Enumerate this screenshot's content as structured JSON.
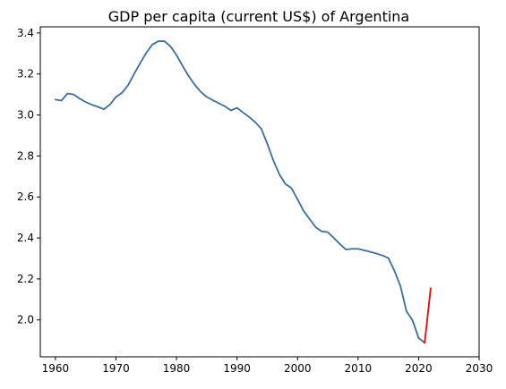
{
  "chart_data": {
    "type": "line",
    "title": "GDP per capita (current US$) of Argentina",
    "xlabel": "",
    "ylabel": "",
    "xlim": [
      1957.5,
      2030
    ],
    "ylim": [
      1.82,
      3.43
    ],
    "x_ticks": [
      1960,
      1970,
      1980,
      1990,
      2000,
      2010,
      2020,
      2030
    ],
    "y_ticks": [
      2.0,
      2.2,
      2.4,
      2.6,
      2.8,
      3.0,
      3.2,
      3.4
    ],
    "y_tick_labels": [
      "2.0",
      "2.2",
      "2.4",
      "2.6",
      "2.8",
      "3.0",
      "3.2",
      "3.4"
    ],
    "grid": false,
    "series": [
      {
        "color": "#3a6ea5",
        "x": [
          1960,
          1961,
          1962,
          1963,
          1964,
          1965,
          1966,
          1967,
          1968,
          1969,
          1970,
          1971,
          1972,
          1973,
          1974,
          1975,
          1976,
          1977,
          1978,
          1979,
          1980,
          1981,
          1982,
          1983,
          1984,
          1985,
          1986,
          1987,
          1988,
          1989,
          1990,
          1991,
          1992,
          1993,
          1994,
          1995,
          1996,
          1997,
          1998,
          1999,
          2000,
          2001,
          2002,
          2003,
          2004,
          2005,
          2006,
          2007,
          2008,
          2009,
          2010,
          2011,
          2012,
          2013,
          2014,
          2015,
          2016,
          2017,
          2018,
          2019,
          2020,
          2021
        ],
        "values": [
          3.075,
          3.07,
          3.105,
          3.1,
          3.08,
          3.063,
          3.05,
          3.04,
          3.028,
          3.05,
          3.088,
          3.108,
          3.145,
          3.2,
          3.253,
          3.303,
          3.343,
          3.36,
          3.36,
          3.335,
          3.292,
          3.24,
          3.19,
          3.148,
          3.113,
          3.088,
          3.072,
          3.057,
          3.042,
          3.022,
          3.035,
          3.012,
          2.99,
          2.965,
          2.933,
          2.86,
          2.778,
          2.71,
          2.663,
          2.643,
          2.588,
          2.532,
          2.492,
          2.452,
          2.432,
          2.428,
          2.4,
          2.37,
          2.343,
          2.347,
          2.347,
          2.34,
          2.332,
          2.324,
          2.315,
          2.302,
          2.24,
          2.165,
          2.042,
          1.998,
          1.912,
          1.888
        ]
      },
      {
        "color": "#ff0000",
        "x": [
          2021,
          2022
        ],
        "values": [
          1.888,
          2.155
        ]
      }
    ]
  }
}
